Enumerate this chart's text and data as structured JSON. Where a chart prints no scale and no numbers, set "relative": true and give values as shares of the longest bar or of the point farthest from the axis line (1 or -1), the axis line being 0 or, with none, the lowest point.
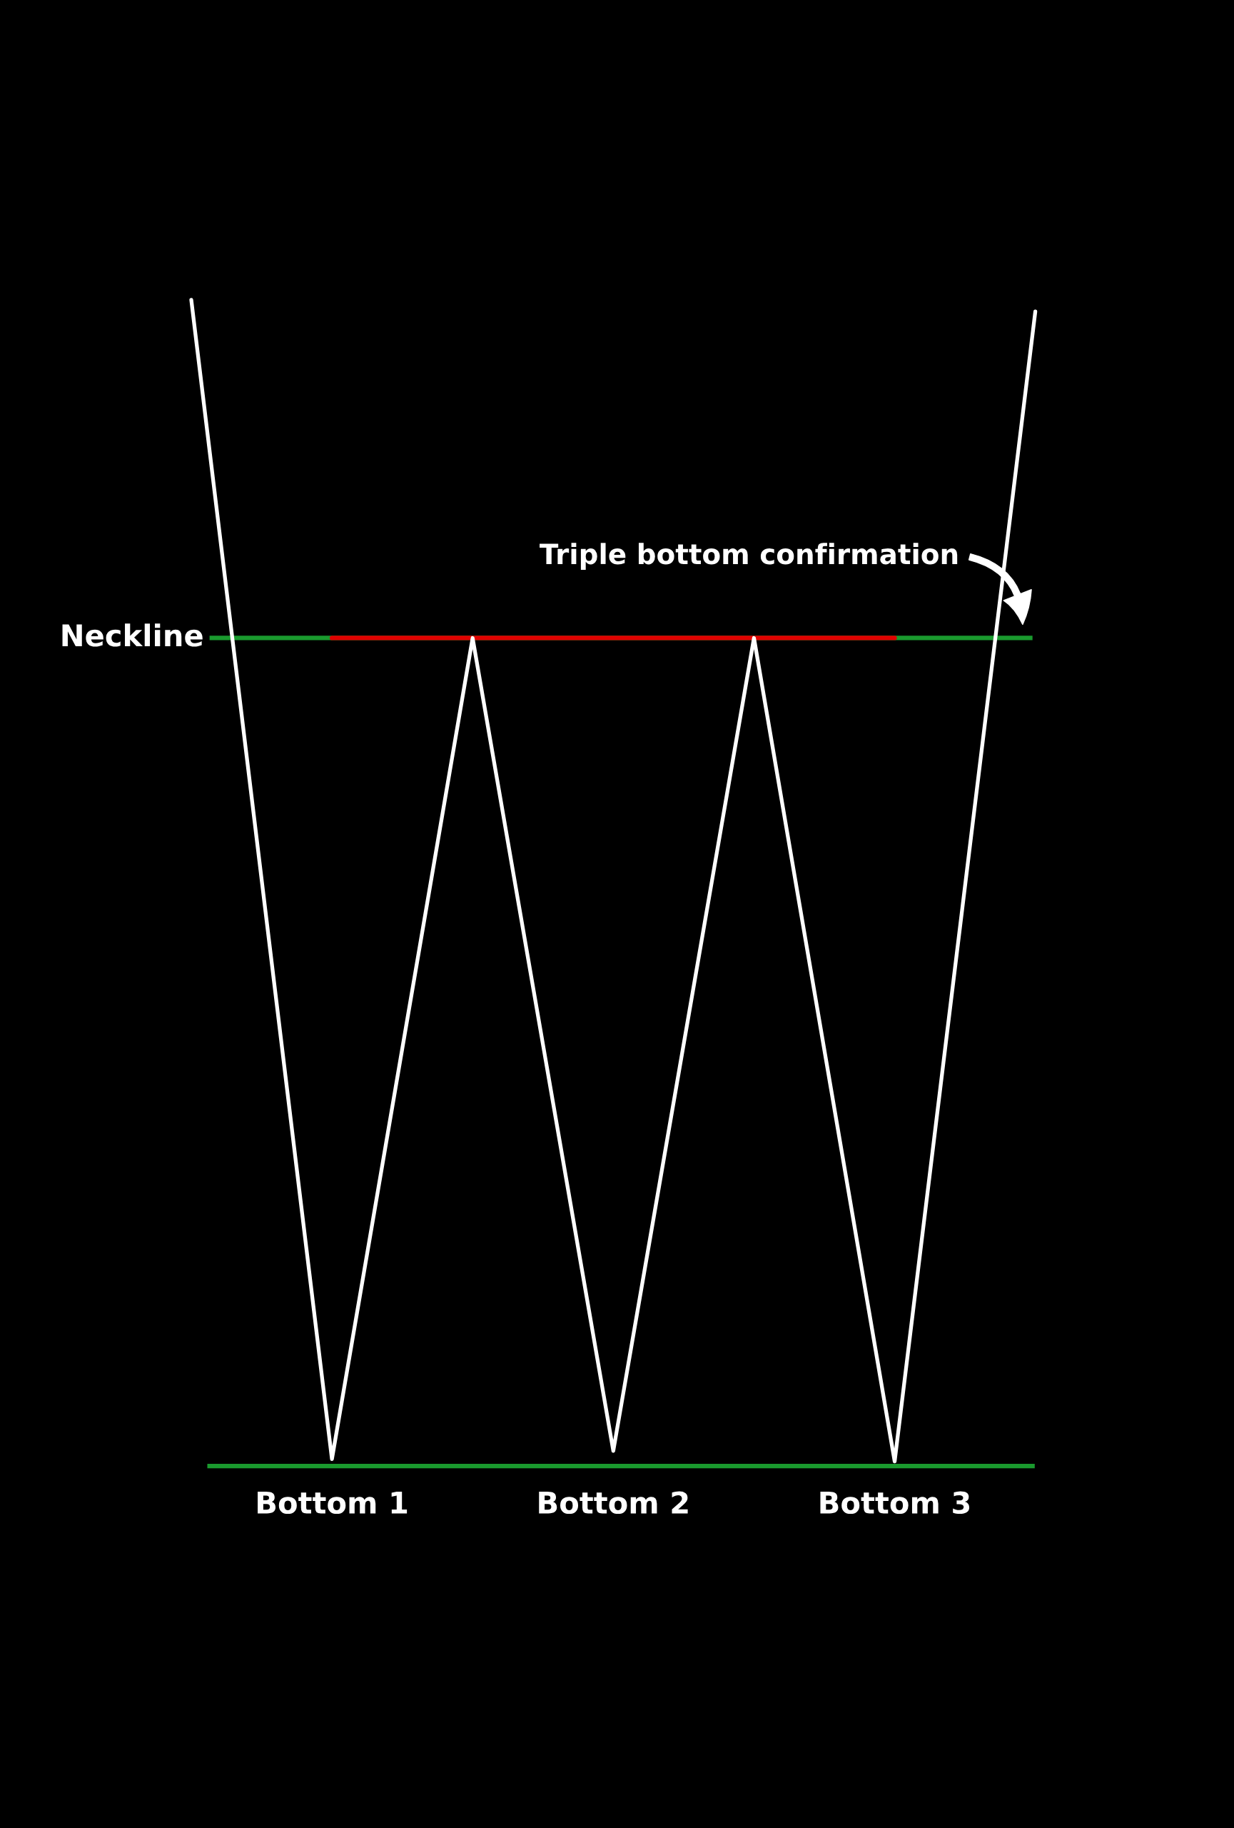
{
  "chart_data": {
    "type": "line",
    "relative": true,
    "tick_labels": "x",
    "grid": false,
    "legend": false,
    "marker": "none",
    "line_style": "solid",
    "categories": [
      null,
      "Bottom 1",
      null,
      "Bottom 2",
      null,
      "Bottom 3",
      null
    ],
    "series": [
      {
        "color": "#ffffff",
        "values": [
          1.0,
          0.006,
          0.71,
          0.013,
          0.71,
          0.004,
          0.99
        ]
      },
      {
        "color": "#e00000",
        "values": [
          null,
          0.71,
          0.71,
          0.71,
          0.71,
          0.71,
          null
        ]
      }
    ],
    "ref_lines": [
      {
        "axis": "y",
        "value": 0.71,
        "label": "Neckline",
        "color": "#1a9a2e"
      }
    ],
    "annotations": [
      {
        "text": "Triple bottom confirmation",
        "y": 0.71
      }
    ]
  }
}
